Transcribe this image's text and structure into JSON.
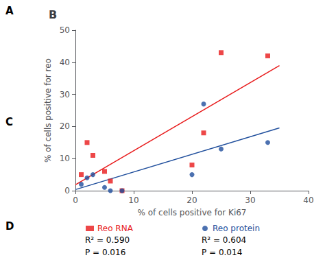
{
  "chart_data": {
    "type": "scatter",
    "title": "B",
    "xlabel": "% of cells positive for Ki67",
    "ylabel": "% of cells positive for reo",
    "xlim": [
      0,
      40
    ],
    "ylim": [
      0,
      50
    ],
    "xticks": [
      0,
      10,
      20,
      30,
      40
    ],
    "yticks": [
      0,
      10,
      20,
      30,
      40,
      50
    ],
    "grid": false,
    "series": [
      {
        "name": "Reo RNA",
        "color": "#e8191a",
        "marker": "square",
        "x": [
          1,
          2,
          3,
          5,
          6,
          8,
          20,
          22,
          25,
          33
        ],
        "values": [
          5,
          15,
          11,
          6,
          3,
          0,
          8,
          18,
          43,
          42
        ],
        "regression": {
          "x": [
            0,
            35
          ],
          "values": [
            1.8443593,
            38.960153
          ]
        },
        "annotations": [
          "R² = 0.590",
          "P = 0.016"
        ]
      },
      {
        "name": "Reo protein",
        "color": "#1f4e9c",
        "marker": "circle",
        "x": [
          1,
          2,
          3,
          5,
          6,
          8,
          20,
          22,
          25,
          33
        ],
        "values": [
          2,
          4,
          5,
          1,
          0,
          0,
          5,
          27,
          13,
          15
        ],
        "regression": {
          "x": [
            0,
            35
          ],
          "values": [
            0.34601959,
            19.53716475
          ]
        },
        "annotations": [
          "R² = 0.604",
          "P = 0.014"
        ]
      }
    ],
    "panel_labels": [
      "A",
      "C",
      "D"
    ]
  }
}
